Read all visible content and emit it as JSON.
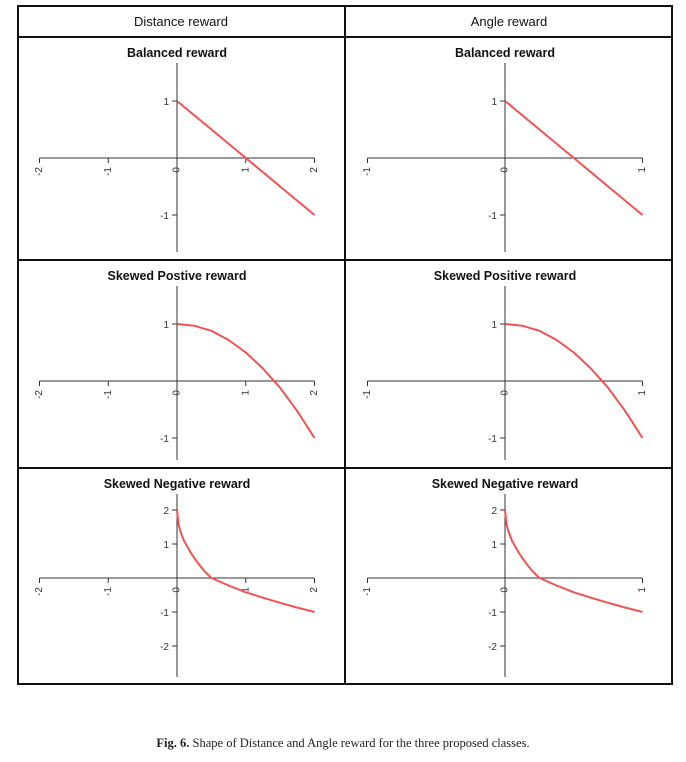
{
  "columns": [
    "Distance reward",
    "Angle reward"
  ],
  "caption": {
    "label": "Fig. 6.",
    "text": "Shape of Distance and Angle reward for the three proposed classes."
  },
  "colors": {
    "curve": "#f25252",
    "axis": "#333333",
    "border": "#111111"
  },
  "chart_data": [
    {
      "type": "line",
      "row": 0,
      "col": 0,
      "title": "Balanced reward",
      "xlim": [
        -2,
        2
      ],
      "ylim": [
        -1,
        1
      ],
      "xticks": [
        -2,
        -1,
        0,
        1,
        2
      ],
      "xtick_labels": [
        "-2",
        "-1",
        "0",
        "1",
        "2"
      ],
      "yticks": [
        1,
        -1
      ],
      "ytick_labels": [
        "1",
        "-1"
      ],
      "x": [
        0,
        0.5,
        1,
        1.5,
        2
      ],
      "y": [
        1,
        0.5,
        0,
        -0.5,
        -1
      ]
    },
    {
      "type": "line",
      "row": 0,
      "col": 1,
      "title": "Balanced reward",
      "xlim": [
        -1,
        1
      ],
      "ylim": [
        -1,
        1
      ],
      "xticks": [
        -1,
        0,
        1
      ],
      "xtick_labels": [
        "-1",
        "0",
        "1"
      ],
      "yticks": [
        1,
        -1
      ],
      "ytick_labels": [
        "1",
        "-1"
      ],
      "x": [
        0,
        0.25,
        0.5,
        0.75,
        1
      ],
      "y": [
        1,
        0.5,
        0,
        -0.5,
        -1
      ]
    },
    {
      "type": "line",
      "row": 1,
      "col": 0,
      "title": "Skewed Postive reward",
      "xlim": [
        -2,
        2
      ],
      "ylim": [
        -1,
        1
      ],
      "xticks": [
        -2,
        -1,
        0,
        1,
        2
      ],
      "xtick_labels": [
        "-2",
        "-1",
        "0",
        "1",
        "2"
      ],
      "yticks": [
        1,
        -1
      ],
      "ytick_labels": [
        "1",
        "-1"
      ],
      "x": [
        0,
        0.25,
        0.5,
        0.75,
        1,
        1.25,
        1.5,
        1.75,
        2
      ],
      "y": [
        1,
        0.97,
        0.88,
        0.72,
        0.5,
        0.22,
        -0.12,
        -0.53,
        -1
      ]
    },
    {
      "type": "line",
      "row": 1,
      "col": 1,
      "title": "Skewed Positive reward",
      "xlim": [
        -1,
        1
      ],
      "ylim": [
        -1,
        1
      ],
      "xticks": [
        -1,
        0,
        1
      ],
      "xtick_labels": [
        "-1",
        "0",
        "1"
      ],
      "yticks": [
        1,
        -1
      ],
      "ytick_labels": [
        "1",
        "-1"
      ],
      "x": [
        0,
        0.125,
        0.25,
        0.375,
        0.5,
        0.625,
        0.75,
        0.875,
        1
      ],
      "y": [
        1,
        0.97,
        0.88,
        0.72,
        0.5,
        0.22,
        -0.12,
        -0.53,
        -1
      ]
    },
    {
      "type": "line",
      "row": 2,
      "col": 0,
      "title": "Skewed Negative reward",
      "xlim": [
        -2,
        2
      ],
      "ylim": [
        -2,
        2
      ],
      "xticks": [
        -2,
        -1,
        0,
        1,
        2
      ],
      "xtick_labels": [
        "-2",
        "-1",
        "0",
        "1",
        "2"
      ],
      "yticks": [
        2,
        1,
        -1,
        -2
      ],
      "ytick_labels": [
        "2",
        "1",
        "-1",
        "-2"
      ],
      "x": [
        0,
        0.02,
        0.05,
        0.1,
        0.2,
        0.3,
        0.4,
        0.5,
        0.75,
        1,
        1.25,
        1.5,
        1.75,
        2
      ],
      "y": [
        2,
        1.6,
        1.37,
        1.1,
        0.74,
        0.45,
        0.2,
        0,
        -0.22,
        -0.42,
        -0.58,
        -0.73,
        -0.87,
        -1
      ]
    },
    {
      "type": "line",
      "row": 2,
      "col": 1,
      "title": "Skewed Negative reward",
      "xlim": [
        -1,
        1
      ],
      "ylim": [
        -2,
        2
      ],
      "xticks": [
        -1,
        0,
        1
      ],
      "xtick_labels": [
        "-1",
        "0",
        "1"
      ],
      "yticks": [
        2,
        1,
        -1,
        -2
      ],
      "ytick_labels": [
        "2",
        "1",
        "-1",
        "-2"
      ],
      "x": [
        0,
        0.01,
        0.025,
        0.05,
        0.1,
        0.15,
        0.2,
        0.25,
        0.375,
        0.5,
        0.625,
        0.75,
        0.875,
        1
      ],
      "y": [
        2,
        1.6,
        1.37,
        1.1,
        0.74,
        0.45,
        0.2,
        0,
        -0.22,
        -0.42,
        -0.58,
        -0.73,
        -0.87,
        -1
      ]
    }
  ]
}
